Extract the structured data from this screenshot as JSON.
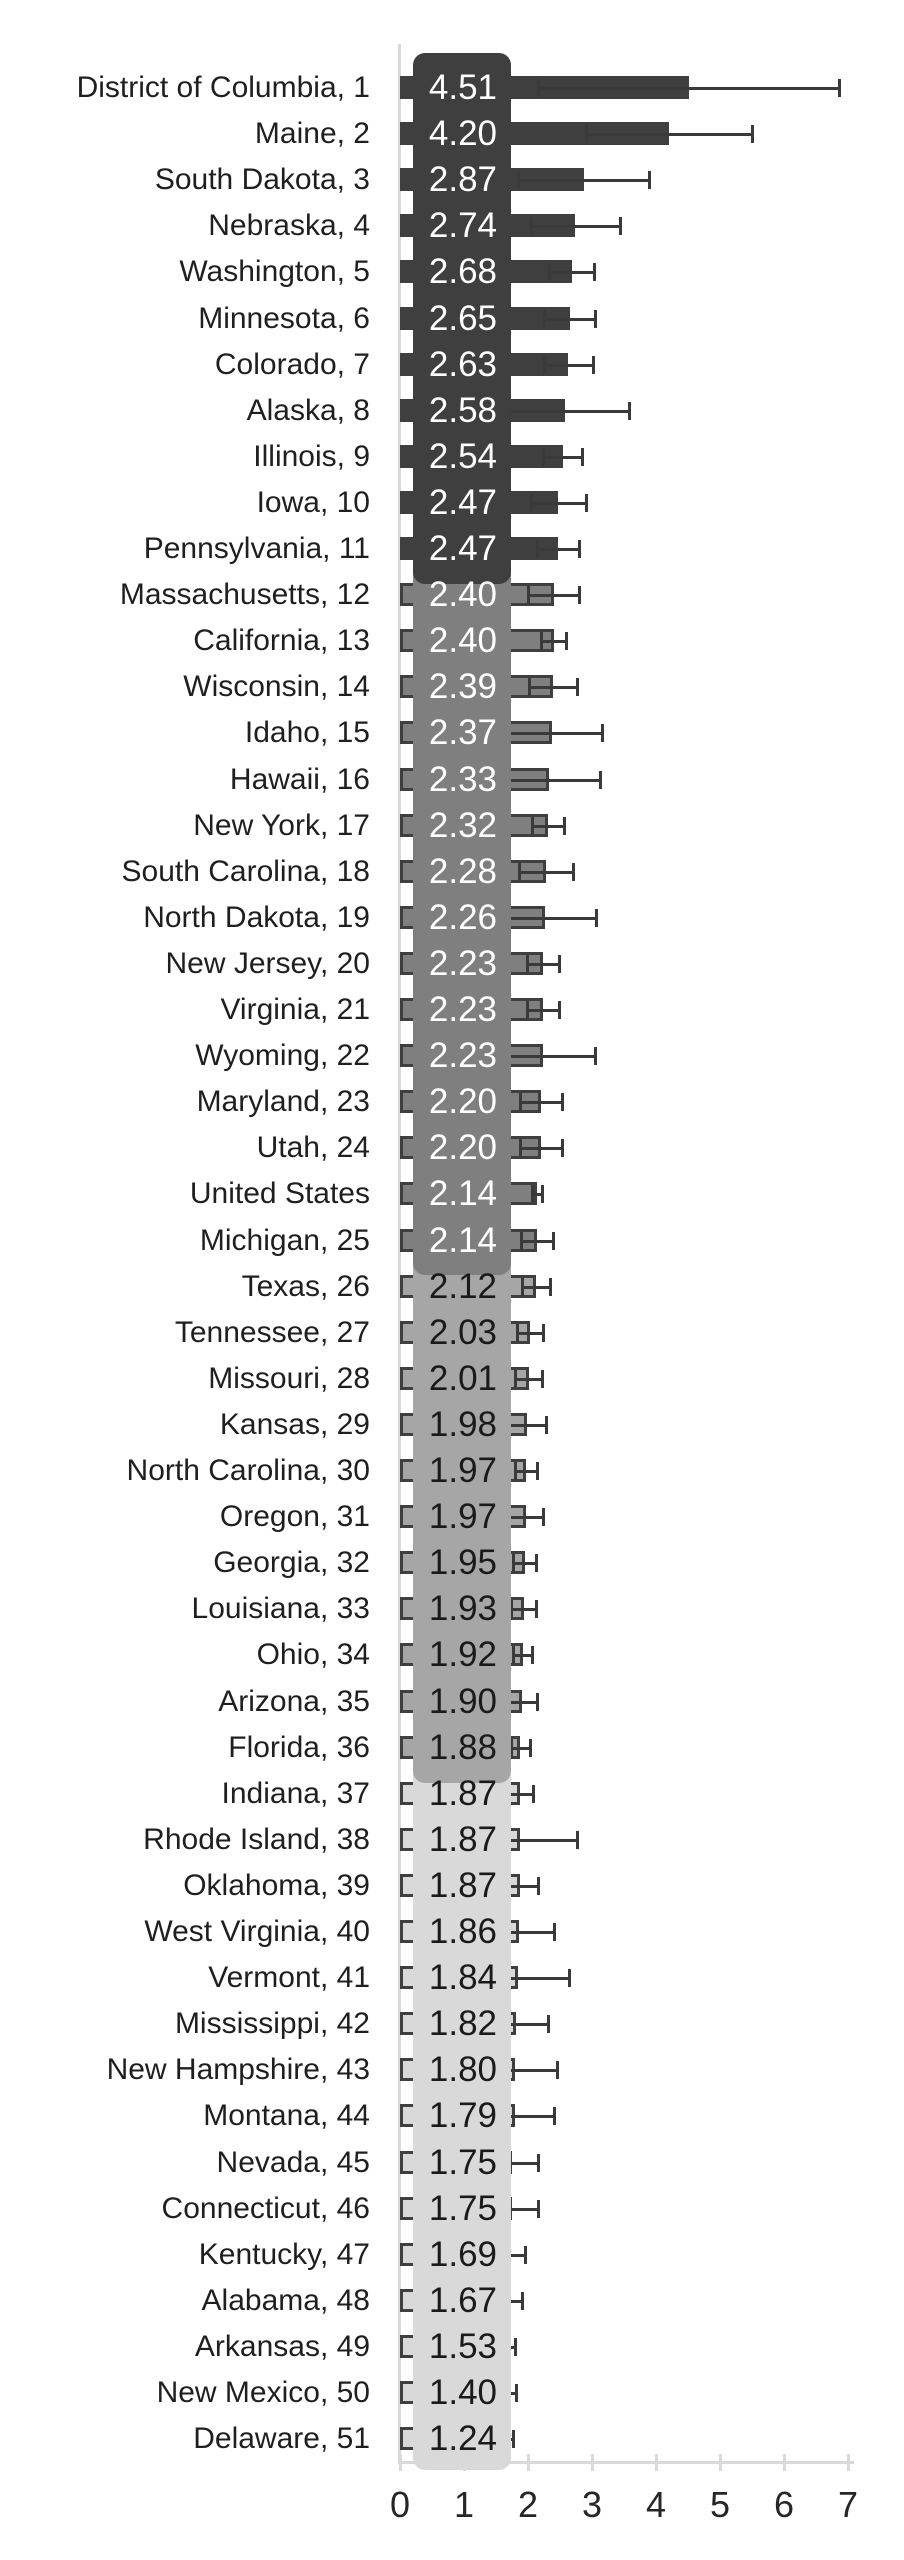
{
  "chart_data": {
    "type": "bar",
    "orientation": "horizontal",
    "title": "",
    "xlabel": "",
    "ylabel": "",
    "xlim": [
      0,
      7
    ],
    "x_ticks": [
      "0",
      "1",
      "2",
      "3",
      "4",
      "5",
      "6",
      "7"
    ],
    "grid": false,
    "legend": "none",
    "error_bars": "both-sides, dark caps",
    "groups": [
      {
        "id": "g1",
        "note": "ranks 1-11",
        "box_color": "#3f3f3f",
        "bar_fill": "#3f3f3f",
        "bar_border": "none",
        "value_text_color": "#ffffff"
      },
      {
        "id": "g2",
        "note": "ranks 12-25 incl United States",
        "box_color": "#7f7f7f",
        "bar_fill": "#7f7f7f",
        "bar_border": "#3f3f3f",
        "value_text_color": "#ffffff"
      },
      {
        "id": "g3",
        "note": "ranks 26-36",
        "box_color": "#a6a6a6",
        "bar_fill": "#a6a6a6",
        "bar_border": "#3f3f3f",
        "value_text_color": "#1a1a1a"
      },
      {
        "id": "g4",
        "note": "ranks 37-51",
        "box_color": "#d9d9d9",
        "bar_fill": "#d9d9d9",
        "bar_border": "#3f3f3f",
        "value_text_color": "#1a1a1a"
      }
    ],
    "rows": [
      {
        "label": "District of Columbia, 1",
        "value": 4.51,
        "value_label": "4.51",
        "err": 2.35,
        "group": 0
      },
      {
        "label": "Maine, 2",
        "value": 4.2,
        "value_label": "4.20",
        "err": 1.3,
        "group": 0
      },
      {
        "label": "South Dakota, 3",
        "value": 2.87,
        "value_label": "2.87",
        "err": 1.02,
        "group": 0
      },
      {
        "label": "Nebraska, 4",
        "value": 2.74,
        "value_label": "2.74",
        "err": 0.7,
        "group": 0
      },
      {
        "label": "Washington, 5",
        "value": 2.68,
        "value_label": "2.68",
        "err": 0.35,
        "group": 0
      },
      {
        "label": "Minnesota, 6",
        "value": 2.65,
        "value_label": "2.65",
        "err": 0.4,
        "group": 0
      },
      {
        "label": "Colorado, 7",
        "value": 2.63,
        "value_label": "2.63",
        "err": 0.38,
        "group": 0
      },
      {
        "label": "Alaska, 8",
        "value": 2.58,
        "value_label": "2.58",
        "err": 1.0,
        "group": 0
      },
      {
        "label": "Illinois, 9",
        "value": 2.54,
        "value_label": "2.54",
        "err": 0.3,
        "group": 0
      },
      {
        "label": "Iowa, 10",
        "value": 2.47,
        "value_label": "2.47",
        "err": 0.43,
        "group": 0
      },
      {
        "label": "Pennsylvania, 11",
        "value": 2.47,
        "value_label": "2.47",
        "err": 0.33,
        "group": 0
      },
      {
        "label": "Massachusetts, 12",
        "value": 2.4,
        "value_label": "2.40",
        "err": 0.4,
        "group": 1
      },
      {
        "label": "California, 13",
        "value": 2.4,
        "value_label": "2.40",
        "err": 0.2,
        "group": 1
      },
      {
        "label": "Wisconsin, 14",
        "value": 2.39,
        "value_label": "2.39",
        "err": 0.38,
        "group": 1
      },
      {
        "label": "Idaho, 15",
        "value": 2.37,
        "value_label": "2.37",
        "err": 0.78,
        "group": 1
      },
      {
        "label": "Hawaii, 16",
        "value": 2.33,
        "value_label": "2.33",
        "err": 0.8,
        "group": 1
      },
      {
        "label": "New York, 17",
        "value": 2.32,
        "value_label": "2.32",
        "err": 0.25,
        "group": 1
      },
      {
        "label": "South Carolina, 18",
        "value": 2.28,
        "value_label": "2.28",
        "err": 0.42,
        "group": 1
      },
      {
        "label": "North Dakota, 19",
        "value": 2.26,
        "value_label": "2.26",
        "err": 0.8,
        "group": 1
      },
      {
        "label": "New Jersey, 20",
        "value": 2.23,
        "value_label": "2.23",
        "err": 0.25,
        "group": 1
      },
      {
        "label": "Virginia, 21",
        "value": 2.23,
        "value_label": "2.23",
        "err": 0.25,
        "group": 1
      },
      {
        "label": "Wyoming, 22",
        "value": 2.23,
        "value_label": "2.23",
        "err": 0.82,
        "group": 1
      },
      {
        "label": "Maryland, 23",
        "value": 2.2,
        "value_label": "2.20",
        "err": 0.33,
        "group": 1
      },
      {
        "label": "Utah, 24",
        "value": 2.2,
        "value_label": "2.20",
        "err": 0.33,
        "group": 1
      },
      {
        "label": "United States",
        "value": 2.14,
        "value_label": "2.14",
        "err": 0.08,
        "group": 1
      },
      {
        "label": "Michigan, 25",
        "value": 2.14,
        "value_label": "2.14",
        "err": 0.25,
        "group": 1
      },
      {
        "label": "Texas, 26",
        "value": 2.12,
        "value_label": "2.12",
        "err": 0.22,
        "group": 2
      },
      {
        "label": "Tennessee, 27",
        "value": 2.03,
        "value_label": "2.03",
        "err": 0.2,
        "group": 2
      },
      {
        "label": "Missouri, 28",
        "value": 2.01,
        "value_label": "2.01",
        "err": 0.21,
        "group": 2
      },
      {
        "label": "Kansas, 29",
        "value": 1.98,
        "value_label": "1.98",
        "err": 0.3,
        "group": 2
      },
      {
        "label": "North Carolina, 30",
        "value": 1.97,
        "value_label": "1.97",
        "err": 0.17,
        "group": 2
      },
      {
        "label": "Oregon, 31",
        "value": 1.97,
        "value_label": "1.97",
        "err": 0.26,
        "group": 2
      },
      {
        "label": "Georgia, 32",
        "value": 1.95,
        "value_label": "1.95",
        "err": 0.18,
        "group": 2
      },
      {
        "label": "Louisiana, 33",
        "value": 1.93,
        "value_label": "1.93",
        "err": 0.2,
        "group": 2
      },
      {
        "label": "Ohio, 34",
        "value": 1.92,
        "value_label": "1.92",
        "err": 0.15,
        "group": 2
      },
      {
        "label": "Arizona, 35",
        "value": 1.9,
        "value_label": "1.90",
        "err": 0.24,
        "group": 2
      },
      {
        "label": "Florida, 36",
        "value": 1.88,
        "value_label": "1.88",
        "err": 0.15,
        "group": 2
      },
      {
        "label": "Indiana, 37",
        "value": 1.87,
        "value_label": "1.87",
        "err": 0.21,
        "group": 3
      },
      {
        "label": "Rhode Island, 38",
        "value": 1.87,
        "value_label": "1.87",
        "err": 0.9,
        "group": 3
      },
      {
        "label": "Oklahoma, 39",
        "value": 1.87,
        "value_label": "1.87",
        "err": 0.29,
        "group": 3
      },
      {
        "label": "West Virginia, 40",
        "value": 1.86,
        "value_label": "1.86",
        "err": 0.54,
        "group": 3
      },
      {
        "label": "Vermont, 41",
        "value": 1.84,
        "value_label": "1.84",
        "err": 0.8,
        "group": 3
      },
      {
        "label": "Mississippi, 42",
        "value": 1.82,
        "value_label": "1.82",
        "err": 0.5,
        "group": 3
      },
      {
        "label": "New Hampshire, 43",
        "value": 1.8,
        "value_label": "1.80",
        "err": 0.65,
        "group": 3
      },
      {
        "label": "Montana, 44",
        "value": 1.79,
        "value_label": "1.79",
        "err": 0.62,
        "group": 3
      },
      {
        "label": "Nevada, 45",
        "value": 1.75,
        "value_label": "1.75",
        "err": 0.41,
        "group": 3
      },
      {
        "label": "Connecticut, 46",
        "value": 1.75,
        "value_label": "1.75",
        "err": 0.41,
        "group": 3
      },
      {
        "label": "Kentucky, 47",
        "value": 1.69,
        "value_label": "1.69",
        "err": 0.27,
        "group": 3
      },
      {
        "label": "Alabama, 48",
        "value": 1.67,
        "value_label": "1.67",
        "err": 0.23,
        "group": 3
      },
      {
        "label": "Arkansas, 49",
        "value": 1.53,
        "value_label": "1.53",
        "err": 0.27,
        "group": 3
      },
      {
        "label": "New Mexico, 50",
        "value": 1.4,
        "value_label": "1.40",
        "err": 0.42,
        "group": 3
      },
      {
        "label": "Delaware, 51",
        "value": 1.24,
        "value_label": "1.24",
        "err": 0.52,
        "group": 3
      }
    ],
    "colors": {
      "axis": "#d9d9d9",
      "whisker": "#3a3a3a",
      "category_label": "#1f1f1f",
      "tick_label": "#262626",
      "background": "#ffffff"
    }
  }
}
